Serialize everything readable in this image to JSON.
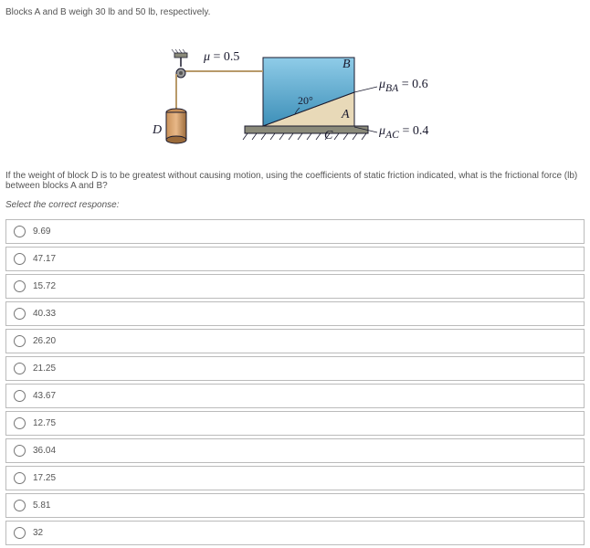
{
  "problem_statement": "Blocks A and B weigh 30 lb and 50 lb, respectively.",
  "diagram": {
    "mu_rope": "μ = 0.5",
    "angle": "20°",
    "mu_BA": "μBA = 0.6",
    "mu_AC": "μAC = 0.4",
    "label_A": "A",
    "label_B": "B",
    "label_C": "C",
    "label_D": "D",
    "colors": {
      "block_b_top": "#6bb5d8",
      "block_b_bot": "#3d8fb8",
      "block_a": "#e8d9b8",
      "block_a_dark": "#c9b88a",
      "surface": "#8a8a7a",
      "block_d": "#c89058",
      "block_d_dark": "#9a6a3a",
      "pulley": "#777",
      "rope": "#b89a6a",
      "outline": "#1a1a2e"
    }
  },
  "question": "If the weight of block D is to be greatest without causing motion, using the coefficients of static friction indicated, what is the frictional force (lb) between blocks A and B?",
  "instruction": "Select the correct response:",
  "options": [
    "9.69",
    "47.17",
    "15.72",
    "40.33",
    "26.20",
    "21.25",
    "43.67",
    "12.75",
    "36.04",
    "17.25",
    "5.81",
    "32"
  ]
}
